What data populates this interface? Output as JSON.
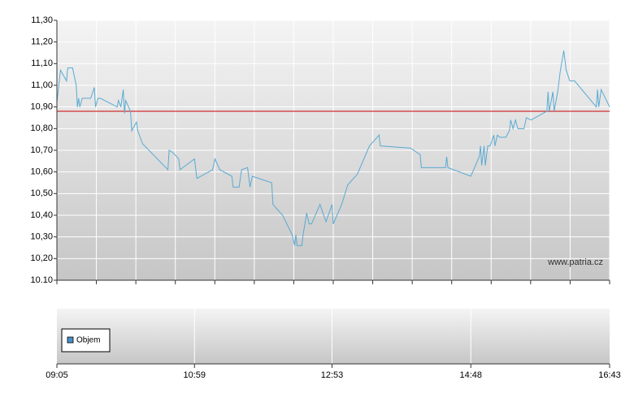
{
  "chart_data": {
    "type": "line",
    "watermark": "www.patria.cz",
    "x": [
      "09:05",
      "09:08",
      "09:13",
      "09:14",
      "09:18",
      "09:21",
      "09:22",
      "09:23",
      "09:24",
      "09:26",
      "09:33",
      "09:36",
      "09:37",
      "09:39",
      "09:41",
      "09:55",
      "09:56",
      "09:58",
      "10:00",
      "10:01",
      "10:02",
      "10:06",
      "10:07",
      "10:11",
      "10:12",
      "10:16",
      "10:37",
      "10:38",
      "10:41",
      "10:46",
      "10:47",
      "10:59",
      "11:01",
      "11:14",
      "11:16",
      "11:20",
      "11:30",
      "11:31",
      "11:36",
      "11:38",
      "11:43",
      "11:45",
      "11:47",
      "12:03",
      "12:04",
      "12:12",
      "12:20",
      "12:22",
      "12:23",
      "12:24",
      "12:28",
      "12:29",
      "12:32",
      "12:34",
      "12:36",
      "12:43",
      "12:48",
      "12:53",
      "12:54",
      "13:01",
      "13:06",
      "13:14",
      "13:24",
      "13:32",
      "13:33",
      "13:58",
      "14:06",
      "14:07",
      "14:27",
      "14:28",
      "14:29",
      "14:48",
      "14:55",
      "14:56",
      "14:57",
      "14:59",
      "15:00",
      "15:02",
      "15:04",
      "15:07",
      "15:08",
      "15:10",
      "15:12",
      "15:17",
      "15:20",
      "15:21",
      "15:23",
      "15:25",
      "15:27",
      "15:32",
      "15:34",
      "15:38",
      "15:51",
      "15:52",
      "15:53",
      "15:56",
      "15:57",
      "16:00",
      "16:02",
      "16:05",
      "16:07",
      "16:10",
      "16:14",
      "16:32",
      "16:33",
      "16:34",
      "16:36",
      "16:43"
    ],
    "series": [
      {
        "color": "#5aaad2",
        "values": [
          10.92,
          11.07,
          11.02,
          11.08,
          11.08,
          11.0,
          10.9,
          10.94,
          10.9,
          10.94,
          10.94,
          10.99,
          10.9,
          10.94,
          10.94,
          10.9,
          10.93,
          10.9,
          10.98,
          10.87,
          10.93,
          10.88,
          10.79,
          10.83,
          10.79,
          10.73,
          10.61,
          10.7,
          10.69,
          10.66,
          10.61,
          10.66,
          10.57,
          10.61,
          10.66,
          10.61,
          10.58,
          10.53,
          10.53,
          10.61,
          10.62,
          10.53,
          10.58,
          10.55,
          10.45,
          10.4,
          10.31,
          10.26,
          10.31,
          10.26,
          10.26,
          10.31,
          10.41,
          10.36,
          10.36,
          10.45,
          10.37,
          10.45,
          10.36,
          10.45,
          10.54,
          10.59,
          10.72,
          10.77,
          10.72,
          10.71,
          10.68,
          10.62,
          10.62,
          10.67,
          10.62,
          10.58,
          10.67,
          10.72,
          10.63,
          10.72,
          10.63,
          10.72,
          10.72,
          10.77,
          10.72,
          10.77,
          10.76,
          10.76,
          10.79,
          10.84,
          10.8,
          10.84,
          10.8,
          10.8,
          10.85,
          10.84,
          10.88,
          10.97,
          10.88,
          10.97,
          10.88,
          10.97,
          11.06,
          11.16,
          11.07,
          11.02,
          11.02,
          10.9,
          10.98,
          10.9,
          10.98,
          10.9
        ]
      }
    ],
    "reference_line": {
      "value": 10.88,
      "color": "#cc0000"
    },
    "xlim": [
      "09:05",
      "16:43"
    ],
    "xticks": [
      "09:05",
      "10:59",
      "12:53",
      "14:48",
      "16:43"
    ],
    "ylim": [
      10.1,
      11.3
    ],
    "yticks": [
      {
        "value": 10.1,
        "label": "10.10"
      },
      {
        "value": 10.2,
        "label": "10,20"
      },
      {
        "value": 10.3,
        "label": "10,30"
      },
      {
        "value": 10.4,
        "label": "10,40"
      },
      {
        "value": 10.5,
        "label": "10,50"
      },
      {
        "value": 10.6,
        "label": "10,60"
      },
      {
        "value": 10.7,
        "label": "10,70"
      },
      {
        "value": 10.8,
        "label": "10,80"
      },
      {
        "value": 10.9,
        "label": "10,90"
      },
      {
        "value": 11.0,
        "label": "11,00"
      },
      {
        "value": 11.1,
        "label": "11,10"
      },
      {
        "value": 11.2,
        "label": "11,20"
      },
      {
        "value": 11.3,
        "label": "11,30"
      }
    ],
    "grid": true,
    "volume": {
      "name": "Objem",
      "color": "#4a90c8"
    }
  }
}
